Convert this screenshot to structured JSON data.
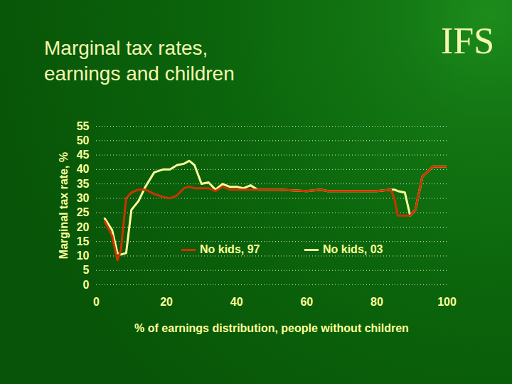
{
  "chart_data": {
    "type": "line",
    "title": "Marginal tax rates, earnings and children",
    "annotations": [
      "IFS"
    ],
    "xlabel": "% of earnings distribution, people without children",
    "ylabel": "Marginal tax rate, %",
    "x": [
      2.4,
      4.5,
      6,
      7,
      8.5,
      10,
      12,
      14,
      16.5,
      19,
      21,
      23,
      25,
      26.5,
      28,
      30,
      32,
      34,
      36,
      38,
      40,
      42,
      44,
      46,
      52,
      60,
      64,
      66,
      75,
      80,
      84,
      85,
      86,
      88,
      89.5,
      91,
      93,
      96,
      100
    ],
    "series": [
      {
        "name": "No kids, 03",
        "color": "#ffff99",
        "values": [
          23,
          19,
          11,
          10.5,
          11,
          26,
          29,
          34,
          39,
          40,
          40,
          41.5,
          42,
          43,
          41.5,
          35,
          35.5,
          33,
          35,
          34,
          34,
          33.5,
          34.5,
          33,
          33,
          32.5,
          33,
          32.5,
          32.5,
          32.5,
          33,
          33,
          32.5,
          32,
          24,
          26,
          37.5,
          41,
          41
        ]
      },
      {
        "name": "No kids, 97",
        "color": "#cc3300",
        "values": [
          22,
          17,
          8.5,
          12,
          30,
          32,
          33,
          33,
          31.5,
          30.5,
          30,
          31,
          33.5,
          34,
          33.5,
          33.5,
          33.5,
          32.5,
          34,
          33,
          33,
          33,
          33,
          33,
          33,
          32.5,
          33,
          32.5,
          32.5,
          32.5,
          33,
          30,
          24,
          24,
          24,
          26,
          37.5,
          41,
          41
        ]
      }
    ],
    "xlim": [
      0,
      100
    ],
    "xticks": [
      0,
      20,
      40,
      60,
      80,
      100
    ],
    "ylim": [
      0,
      55
    ],
    "yticks": [
      0,
      5,
      10,
      15,
      20,
      25,
      30,
      35,
      40,
      45,
      50,
      55
    ],
    "grid": true
  }
}
